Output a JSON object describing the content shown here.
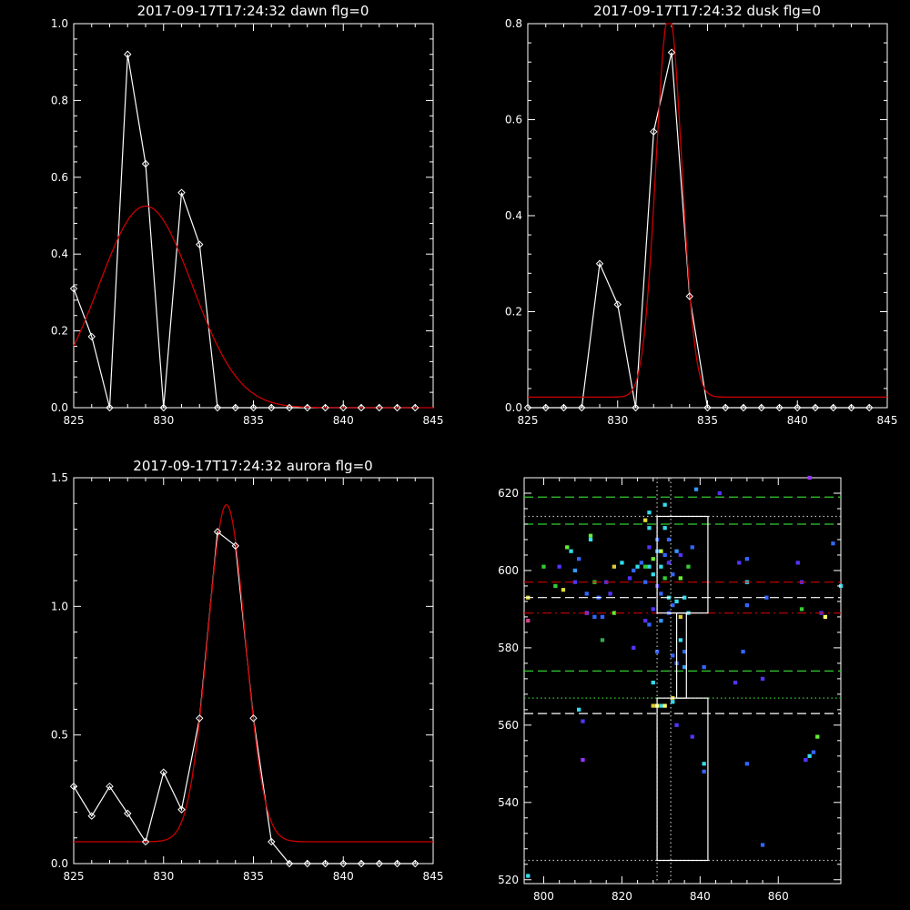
{
  "chart_data": [
    {
      "type": "line",
      "title": "2017-09-17T17:24:32 dawn flg=0",
      "xlim": [
        825,
        845
      ],
      "ylim": [
        0,
        1.0
      ],
      "xticks": [
        "825",
        "830",
        "835",
        "840",
        "845"
      ],
      "yticks": [
        "0.0",
        "0.2",
        "0.4",
        "0.6",
        "0.8",
        "1.0"
      ],
      "series": [
        {
          "color": "#ffffff",
          "marker": "diamond",
          "x": [
            825,
            826,
            827,
            828,
            829,
            830,
            831,
            832,
            833,
            834,
            835,
            836,
            837,
            838,
            839,
            840,
            841,
            842,
            843,
            844
          ],
          "y": [
            0.31,
            0.185,
            0.0,
            0.92,
            0.635,
            0.0,
            0.56,
            0.425,
            0.0,
            0.0,
            0.0,
            0.0,
            0.0,
            0.0,
            0.0,
            0.0,
            0.0,
            0.0,
            0.0,
            0.0
          ]
        },
        {
          "color": "#cc0000",
          "fit": "gaussian",
          "amplitude": 0.525,
          "center": 829.0,
          "sigma": 2.6,
          "baseline": 0.0
        }
      ]
    },
    {
      "type": "line",
      "title": "2017-09-17T17:24:32 dusk flg=0",
      "xlim": [
        825,
        845
      ],
      "ylim": [
        0,
        0.8
      ],
      "xticks": [
        "825",
        "830",
        "835",
        "840",
        "845"
      ],
      "yticks": [
        "0.0",
        "0.2",
        "0.4",
        "0.6",
        "0.8"
      ],
      "series": [
        {
          "color": "#ffffff",
          "marker": "diamond",
          "x": [
            825,
            826,
            827,
            828,
            829,
            830,
            831,
            832,
            833,
            834,
            835,
            836,
            837,
            838,
            839,
            840,
            841,
            842,
            843,
            844
          ],
          "y": [
            0.0,
            0.0,
            0.0,
            0.0,
            0.3,
            0.215,
            0.0,
            0.575,
            0.74,
            0.232,
            0.0,
            0.0,
            0.0,
            0.0,
            0.0,
            0.0,
            0.0,
            0.0,
            0.0,
            0.0
          ]
        },
        {
          "color": "#cc0000",
          "fit": "gaussian",
          "amplitude": 0.8,
          "center": 832.85,
          "sigma": 0.72,
          "baseline": 0.022
        }
      ]
    },
    {
      "type": "line",
      "title": "2017-09-17T17:24:32 aurora flg=0",
      "xlim": [
        825,
        845
      ],
      "ylim": [
        0,
        1.5
      ],
      "xticks": [
        "825",
        "830",
        "835",
        "840",
        "845"
      ],
      "yticks": [
        "0.0",
        "0.5",
        "1.0",
        "1.5"
      ],
      "series": [
        {
          "color": "#ffffff",
          "marker": "diamond",
          "x": [
            825,
            826,
            827,
            828,
            829,
            830,
            831,
            832,
            833,
            834,
            835,
            836,
            837,
            838,
            839,
            840,
            841,
            842,
            843,
            844
          ],
          "y": [
            0.3,
            0.185,
            0.3,
            0.195,
            0.085,
            0.355,
            0.21,
            0.565,
            1.29,
            1.235,
            0.565,
            0.085,
            0.0,
            0.0,
            0.0,
            0.0,
            0.0,
            0.0,
            0.0,
            0.0
          ]
        },
        {
          "color": "#cc0000",
          "fit": "gaussian",
          "amplitude": 1.31,
          "center": 833.5,
          "sigma": 1.05,
          "baseline": 0.085
        }
      ]
    },
    {
      "type": "heatmap",
      "title": "",
      "xlim": [
        795,
        876
      ],
      "ylim": [
        519,
        624
      ],
      "xticks": [
        "800",
        "820",
        "840",
        "860"
      ],
      "yticks": [
        "520",
        "540",
        "560",
        "580",
        "600",
        "620"
      ],
      "pixels": [
        [
          796,
          521,
          "#33ddee"
        ],
        [
          796,
          593,
          "#dddd33"
        ],
        [
          796,
          587,
          "#cc4488"
        ],
        [
          800,
          601,
          "#33cc33"
        ],
        [
          803,
          596,
          "#33cc33"
        ],
        [
          804,
          601,
          "#5533ff"
        ],
        [
          805,
          595,
          "#dddd33"
        ],
        [
          806,
          606,
          "#66ee33"
        ],
        [
          807,
          605,
          "#33ddee"
        ],
        [
          808,
          600,
          "#3399ff"
        ],
        [
          808,
          597,
          "#5533ff"
        ],
        [
          809,
          603,
          "#3366ff"
        ],
        [
          809,
          564,
          "#33ddee"
        ],
        [
          810,
          561,
          "#5533ff"
        ],
        [
          810,
          551,
          "#9933ff"
        ],
        [
          811,
          594,
          "#3366ff"
        ],
        [
          811,
          589,
          "#9933ff"
        ],
        [
          812,
          609,
          "#66ee33"
        ],
        [
          812,
          608,
          "#33ddee"
        ],
        [
          813,
          597,
          "#33cc33"
        ],
        [
          813,
          588,
          "#3366ff"
        ],
        [
          814,
          593,
          "#3366ff"
        ],
        [
          815,
          588,
          "#3366ff"
        ],
        [
          815,
          582,
          "#33aa55"
        ],
        [
          816,
          597,
          "#5533ff"
        ],
        [
          817,
          594,
          "#5533ff"
        ],
        [
          818,
          589,
          "#66ee33"
        ],
        [
          818,
          601,
          "#ddcc33"
        ],
        [
          820,
          602,
          "#33ddee"
        ],
        [
          822,
          598,
          "#5533ff"
        ],
        [
          823,
          600,
          "#3366ff"
        ],
        [
          823,
          580,
          "#5533ff"
        ],
        [
          824,
          601,
          "#33ddee"
        ],
        [
          825,
          602,
          "#3366ff"
        ],
        [
          826,
          601,
          "#33cc33"
        ],
        [
          826,
          613,
          "#dddd33"
        ],
        [
          826,
          597,
          "#3366ff"
        ],
        [
          826,
          587,
          "#5533ff"
        ],
        [
          827,
          615,
          "#33ddee"
        ],
        [
          827,
          611,
          "#33ddee"
        ],
        [
          827,
          606,
          "#5533ff"
        ],
        [
          827,
          601,
          "#33ddee"
        ],
        [
          827,
          586,
          "#3366ff"
        ],
        [
          828,
          603,
          "#66ee33"
        ],
        [
          828,
          599,
          "#33ddee"
        ],
        [
          828,
          590,
          "#5533ff"
        ],
        [
          828,
          571,
          "#33ddee"
        ],
        [
          828,
          565,
          "#ddcc33"
        ],
        [
          829,
          608,
          "#3366ff"
        ],
        [
          829,
          605,
          "#3399ff"
        ],
        [
          829,
          596,
          "#5533ff"
        ],
        [
          829,
          579,
          "#3366ff"
        ],
        [
          829,
          565,
          "#ffff66"
        ],
        [
          830,
          605,
          "#ccff33"
        ],
        [
          830,
          601,
          "#33ddee"
        ],
        [
          830,
          594,
          "#3366ff"
        ],
        [
          830,
          587,
          "#3399ff"
        ],
        [
          830,
          565,
          "#33ddee"
        ],
        [
          831,
          604,
          "#3366ff"
        ],
        [
          831,
          598,
          "#33cc33"
        ],
        [
          831,
          617,
          "#33ddee"
        ],
        [
          831,
          611,
          "#33ddee"
        ],
        [
          831,
          565,
          "#ffff66"
        ],
        [
          832,
          608,
          "#3366ff"
        ],
        [
          832,
          602,
          "#5533ff"
        ],
        [
          832,
          593,
          "#33ddee"
        ],
        [
          832,
          589,
          "#3366ff"
        ],
        [
          833,
          599,
          "#3366ff"
        ],
        [
          833,
          591,
          "#3366ff"
        ],
        [
          833,
          578,
          "#3366ff"
        ],
        [
          833,
          567,
          "#ddcc33"
        ],
        [
          833,
          566,
          "#33ddee"
        ],
        [
          834,
          605,
          "#3399ff"
        ],
        [
          834,
          592,
          "#33ddee"
        ],
        [
          834,
          576,
          "#3366ff"
        ],
        [
          834,
          560,
          "#5533ff"
        ],
        [
          835,
          604,
          "#5533ff"
        ],
        [
          835,
          598,
          "#66ee33"
        ],
        [
          835,
          588,
          "#ddcc33"
        ],
        [
          835,
          582,
          "#33ddee"
        ],
        [
          836,
          593,
          "#33ddee"
        ],
        [
          836,
          579,
          "#3366ff"
        ],
        [
          836,
          575,
          "#3399ff"
        ],
        [
          837,
          601,
          "#33cc33"
        ],
        [
          837,
          589,
          "#33ddee"
        ],
        [
          838,
          606,
          "#3366ff"
        ],
        [
          838,
          557,
          "#5533ff"
        ],
        [
          839,
          621,
          "#3399ff"
        ],
        [
          841,
          575,
          "#3366ff"
        ],
        [
          841,
          550,
          "#33ddee"
        ],
        [
          841,
          548,
          "#3366ff"
        ],
        [
          845,
          620,
          "#5533ff"
        ],
        [
          849,
          571,
          "#5533ff"
        ],
        [
          850,
          602,
          "#5533ff"
        ],
        [
          851,
          579,
          "#3366ff"
        ],
        [
          852,
          603,
          "#3366ff"
        ],
        [
          852,
          597,
          "#33ddee"
        ],
        [
          852,
          591,
          "#3366ff"
        ],
        [
          852,
          550,
          "#3366ff"
        ],
        [
          856,
          572,
          "#5533ff"
        ],
        [
          856,
          529,
          "#3366ff"
        ],
        [
          857,
          593,
          "#3366ff"
        ],
        [
          865,
          602,
          "#5533ff"
        ],
        [
          866,
          597,
          "#5533ff"
        ],
        [
          866,
          590,
          "#33cc33"
        ],
        [
          867,
          551,
          "#5533ff"
        ],
        [
          868,
          552,
          "#33ddee"
        ],
        [
          868,
          624,
          "#9933ff"
        ],
        [
          869,
          553,
          "#3366ff"
        ],
        [
          870,
          557,
          "#66ee33"
        ],
        [
          871,
          589,
          "#5533ff"
        ],
        [
          872,
          588,
          "#ffff66"
        ],
        [
          874,
          607,
          "#3366ff"
        ],
        [
          876,
          596,
          "#33ddee"
        ]
      ],
      "hlines": [
        {
          "y": 619,
          "color": "#33cc33",
          "style": "dashed"
        },
        {
          "y": 614,
          "color": "#bbbbbb",
          "style": "dotted"
        },
        {
          "y": 612,
          "color": "#33cc33",
          "style": "dashed"
        },
        {
          "y": 597,
          "color": "#cc0000",
          "style": "dashed"
        },
        {
          "y": 593,
          "color": "#ffffff",
          "style": "dashed"
        },
        {
          "y": 589,
          "color": "#cc0000",
          "style": "dashdot"
        },
        {
          "y": 574,
          "color": "#33cc33",
          "style": "dashed"
        },
        {
          "y": 567,
          "color": "#33cc33",
          "style": "dotted"
        },
        {
          "y": 563,
          "color": "#ffffff",
          "style": "dashed"
        },
        {
          "y": 525,
          "color": "#bbbbbb",
          "style": "dotted"
        }
      ],
      "vlines": [
        {
          "x": 829,
          "color": "#bbbbbb",
          "style": "dotted"
        },
        {
          "x": 832.5,
          "color": "#bbbbbb",
          "style": "dotted"
        }
      ],
      "boxes": [
        {
          "x0": 829,
          "x1": 842,
          "y0": 589,
          "y1": 614
        },
        {
          "x0": 834,
          "x1": 836.5,
          "y0": 567,
          "y1": 589
        },
        {
          "x0": 829,
          "x1": 842,
          "y0": 525,
          "y1": 567
        }
      ]
    }
  ]
}
